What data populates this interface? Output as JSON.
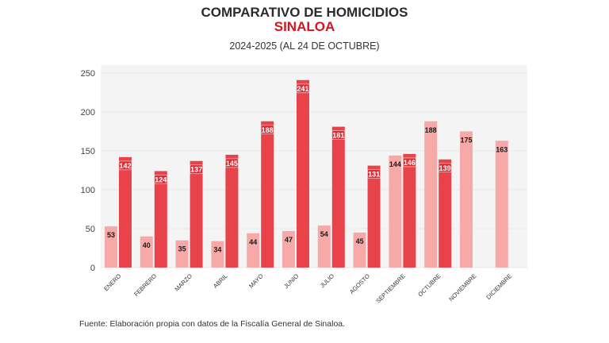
{
  "chart_data": {
    "type": "bar",
    "title": "COMPARATIVO DE HOMICIDIOS",
    "subtitle": "SINALOA",
    "subtitle2": "2024-2025 (AL 24 DE OCTUBRE)",
    "categories": [
      "ENERO",
      "FEBRERO",
      "MARZO",
      "ABRIL",
      "MAYO",
      "JUNIO",
      "JULIO",
      "AGOSTO",
      "SEPTIEMBRE",
      "OCTUBRE",
      "NOVIEMBRE",
      "DICIEMBRE"
    ],
    "series": [
      {
        "color": "#f7a9a8",
        "label_color": "#1a1a1a",
        "values": [
          53,
          40,
          35,
          34,
          44,
          47,
          54,
          45,
          144,
          188,
          175,
          163
        ]
      },
      {
        "color": "#e8434a",
        "label_color": "#ffffff",
        "values": [
          142,
          124,
          137,
          145,
          188,
          241,
          181,
          131,
          146,
          139,
          null,
          null
        ]
      }
    ],
    "ylim": [
      0,
      250
    ],
    "yticks": [
      0,
      50,
      100,
      150,
      200,
      250
    ],
    "grid": true,
    "background": "#f4f4f4",
    "source": "Fuente: Elaboración propia con datos de la Fiscalía General de Sinaloa."
  }
}
